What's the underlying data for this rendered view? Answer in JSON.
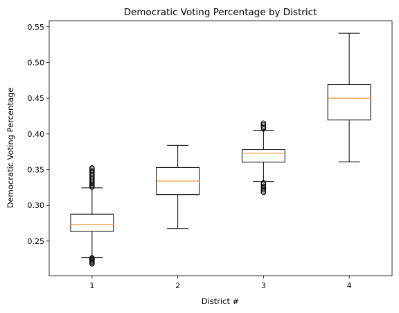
{
  "chart_data": {
    "type": "box",
    "title": "Democratic Voting Percentage by District",
    "xlabel": "District #",
    "ylabel": "Democratic Voting Percentage",
    "categories": [
      "1",
      "2",
      "3",
      "4"
    ],
    "ylim": [
      0.2015,
      0.5585
    ],
    "yticks": [
      0.25,
      0.3,
      0.35,
      0.4,
      0.45,
      0.5,
      0.55
    ],
    "ytick_labels": [
      "0.25",
      "0.30",
      "0.35",
      "0.40",
      "0.45",
      "0.50",
      "0.55"
    ],
    "grid": false,
    "colors": {
      "box": "#000000",
      "median": "#ff7f0e",
      "flier": "#000000"
    },
    "boxes": [
      {
        "category": "1",
        "whisker_low": 0.227,
        "q1": 0.2635,
        "median": 0.2735,
        "q3": 0.2875,
        "whisker_high": 0.3245,
        "outliers": [
          0.218,
          0.2195,
          0.221,
          0.2225,
          0.224,
          0.2255,
          0.2265,
          0.3255,
          0.3275,
          0.329,
          0.331,
          0.333,
          0.335,
          0.337,
          0.339,
          0.341,
          0.343,
          0.345,
          0.347,
          0.349,
          0.351,
          0.3525
        ]
      },
      {
        "category": "2",
        "whisker_low": 0.2675,
        "q1": 0.315,
        "median": 0.334,
        "q3": 0.353,
        "whisker_high": 0.384,
        "outliers": []
      },
      {
        "category": "3",
        "whisker_low": 0.3335,
        "q1": 0.3605,
        "median": 0.373,
        "q3": 0.378,
        "whisker_high": 0.405,
        "outliers": [
          0.318,
          0.32,
          0.322,
          0.3245,
          0.327,
          0.3295,
          0.3315,
          0.407,
          0.409,
          0.411,
          0.413,
          0.415
        ]
      },
      {
        "category": "4",
        "whisker_low": 0.361,
        "q1": 0.4195,
        "median": 0.45,
        "q3": 0.469,
        "whisker_high": 0.541,
        "outliers": []
      }
    ]
  }
}
